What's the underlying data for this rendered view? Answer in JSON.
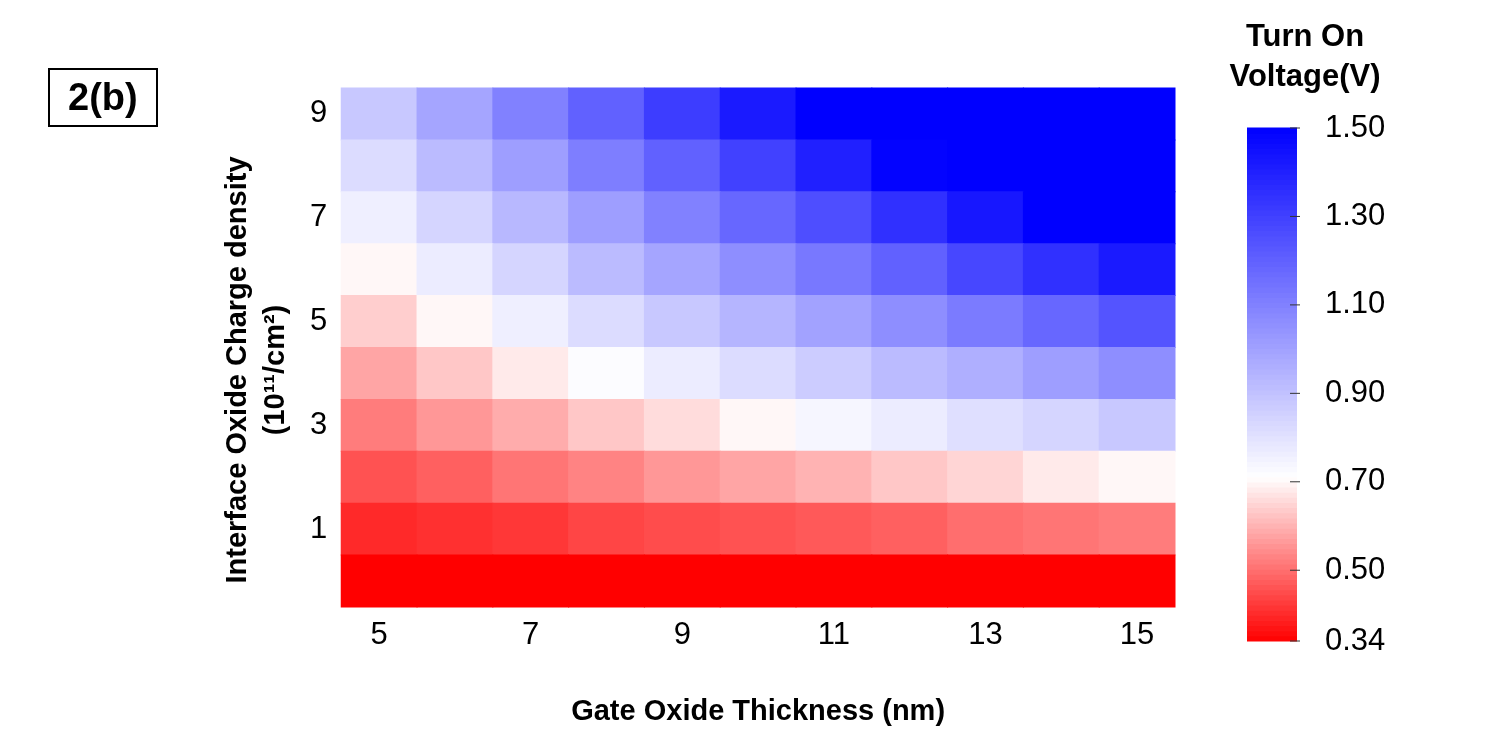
{
  "chart_data": {
    "type": "heatmap",
    "xlabel": "Gate Oxide Thickness (nm)",
    "ylabel": "Interface Oxide Charge density (10¹¹/cm²)",
    "clabel": "Turn On Voltage(V)",
    "annotations": [
      "2(b)"
    ],
    "categories": [
      "5",
      null,
      "7",
      null,
      "9",
      null,
      "11",
      null,
      "13",
      null,
      "15"
    ],
    "y_categories": [
      "9",
      null,
      "7",
      null,
      "5",
      null,
      "3",
      null,
      "1",
      null
    ],
    "clim": [
      0.34,
      1.5
    ],
    "cticks": [
      {
        "value": 1.5,
        "label": "1.50"
      },
      {
        "value": 1.3,
        "label": "1.30"
      },
      {
        "value": 1.1,
        "label": "1.10"
      },
      {
        "value": 0.9,
        "label": "0.90"
      },
      {
        "value": 0.7,
        "label": "0.70"
      },
      {
        "value": 0.5,
        "label": "0.50"
      },
      {
        "value": 0.34,
        "label": "0.34"
      }
    ],
    "cells": [
      [
        0.88,
        0.99,
        1.1,
        1.2,
        1.31,
        1.42,
        1.5,
        1.5,
        1.5,
        1.5,
        1.5
      ],
      [
        0.82,
        0.92,
        1.01,
        1.11,
        1.2,
        1.3,
        1.4,
        1.49,
        1.5,
        1.5,
        1.5
      ],
      [
        0.76,
        0.84,
        0.93,
        1.01,
        1.1,
        1.18,
        1.26,
        1.35,
        1.43,
        1.5,
        1.5
      ],
      [
        0.7,
        0.77,
        0.84,
        0.92,
        0.99,
        1.06,
        1.13,
        1.2,
        1.28,
        1.35,
        1.42
      ],
      [
        0.64,
        0.7,
        0.76,
        0.82,
        0.88,
        0.94,
        1.0,
        1.06,
        1.12,
        1.18,
        1.24
      ],
      [
        0.58,
        0.63,
        0.68,
        0.72,
        0.77,
        0.82,
        0.87,
        0.92,
        0.96,
        1.01,
        1.06
      ],
      [
        0.52,
        0.56,
        0.59,
        0.63,
        0.66,
        0.7,
        0.74,
        0.77,
        0.81,
        0.84,
        0.88
      ],
      [
        0.46,
        0.48,
        0.51,
        0.53,
        0.56,
        0.58,
        0.6,
        0.63,
        0.65,
        0.68,
        0.7
      ],
      [
        0.4,
        0.41,
        0.42,
        0.44,
        0.45,
        0.46,
        0.47,
        0.48,
        0.5,
        0.51,
        0.52
      ],
      [
        0.34,
        0.34,
        0.34,
        0.34,
        0.34,
        0.34,
        0.34,
        0.34,
        0.34,
        0.34,
        0.34
      ]
    ]
  }
}
